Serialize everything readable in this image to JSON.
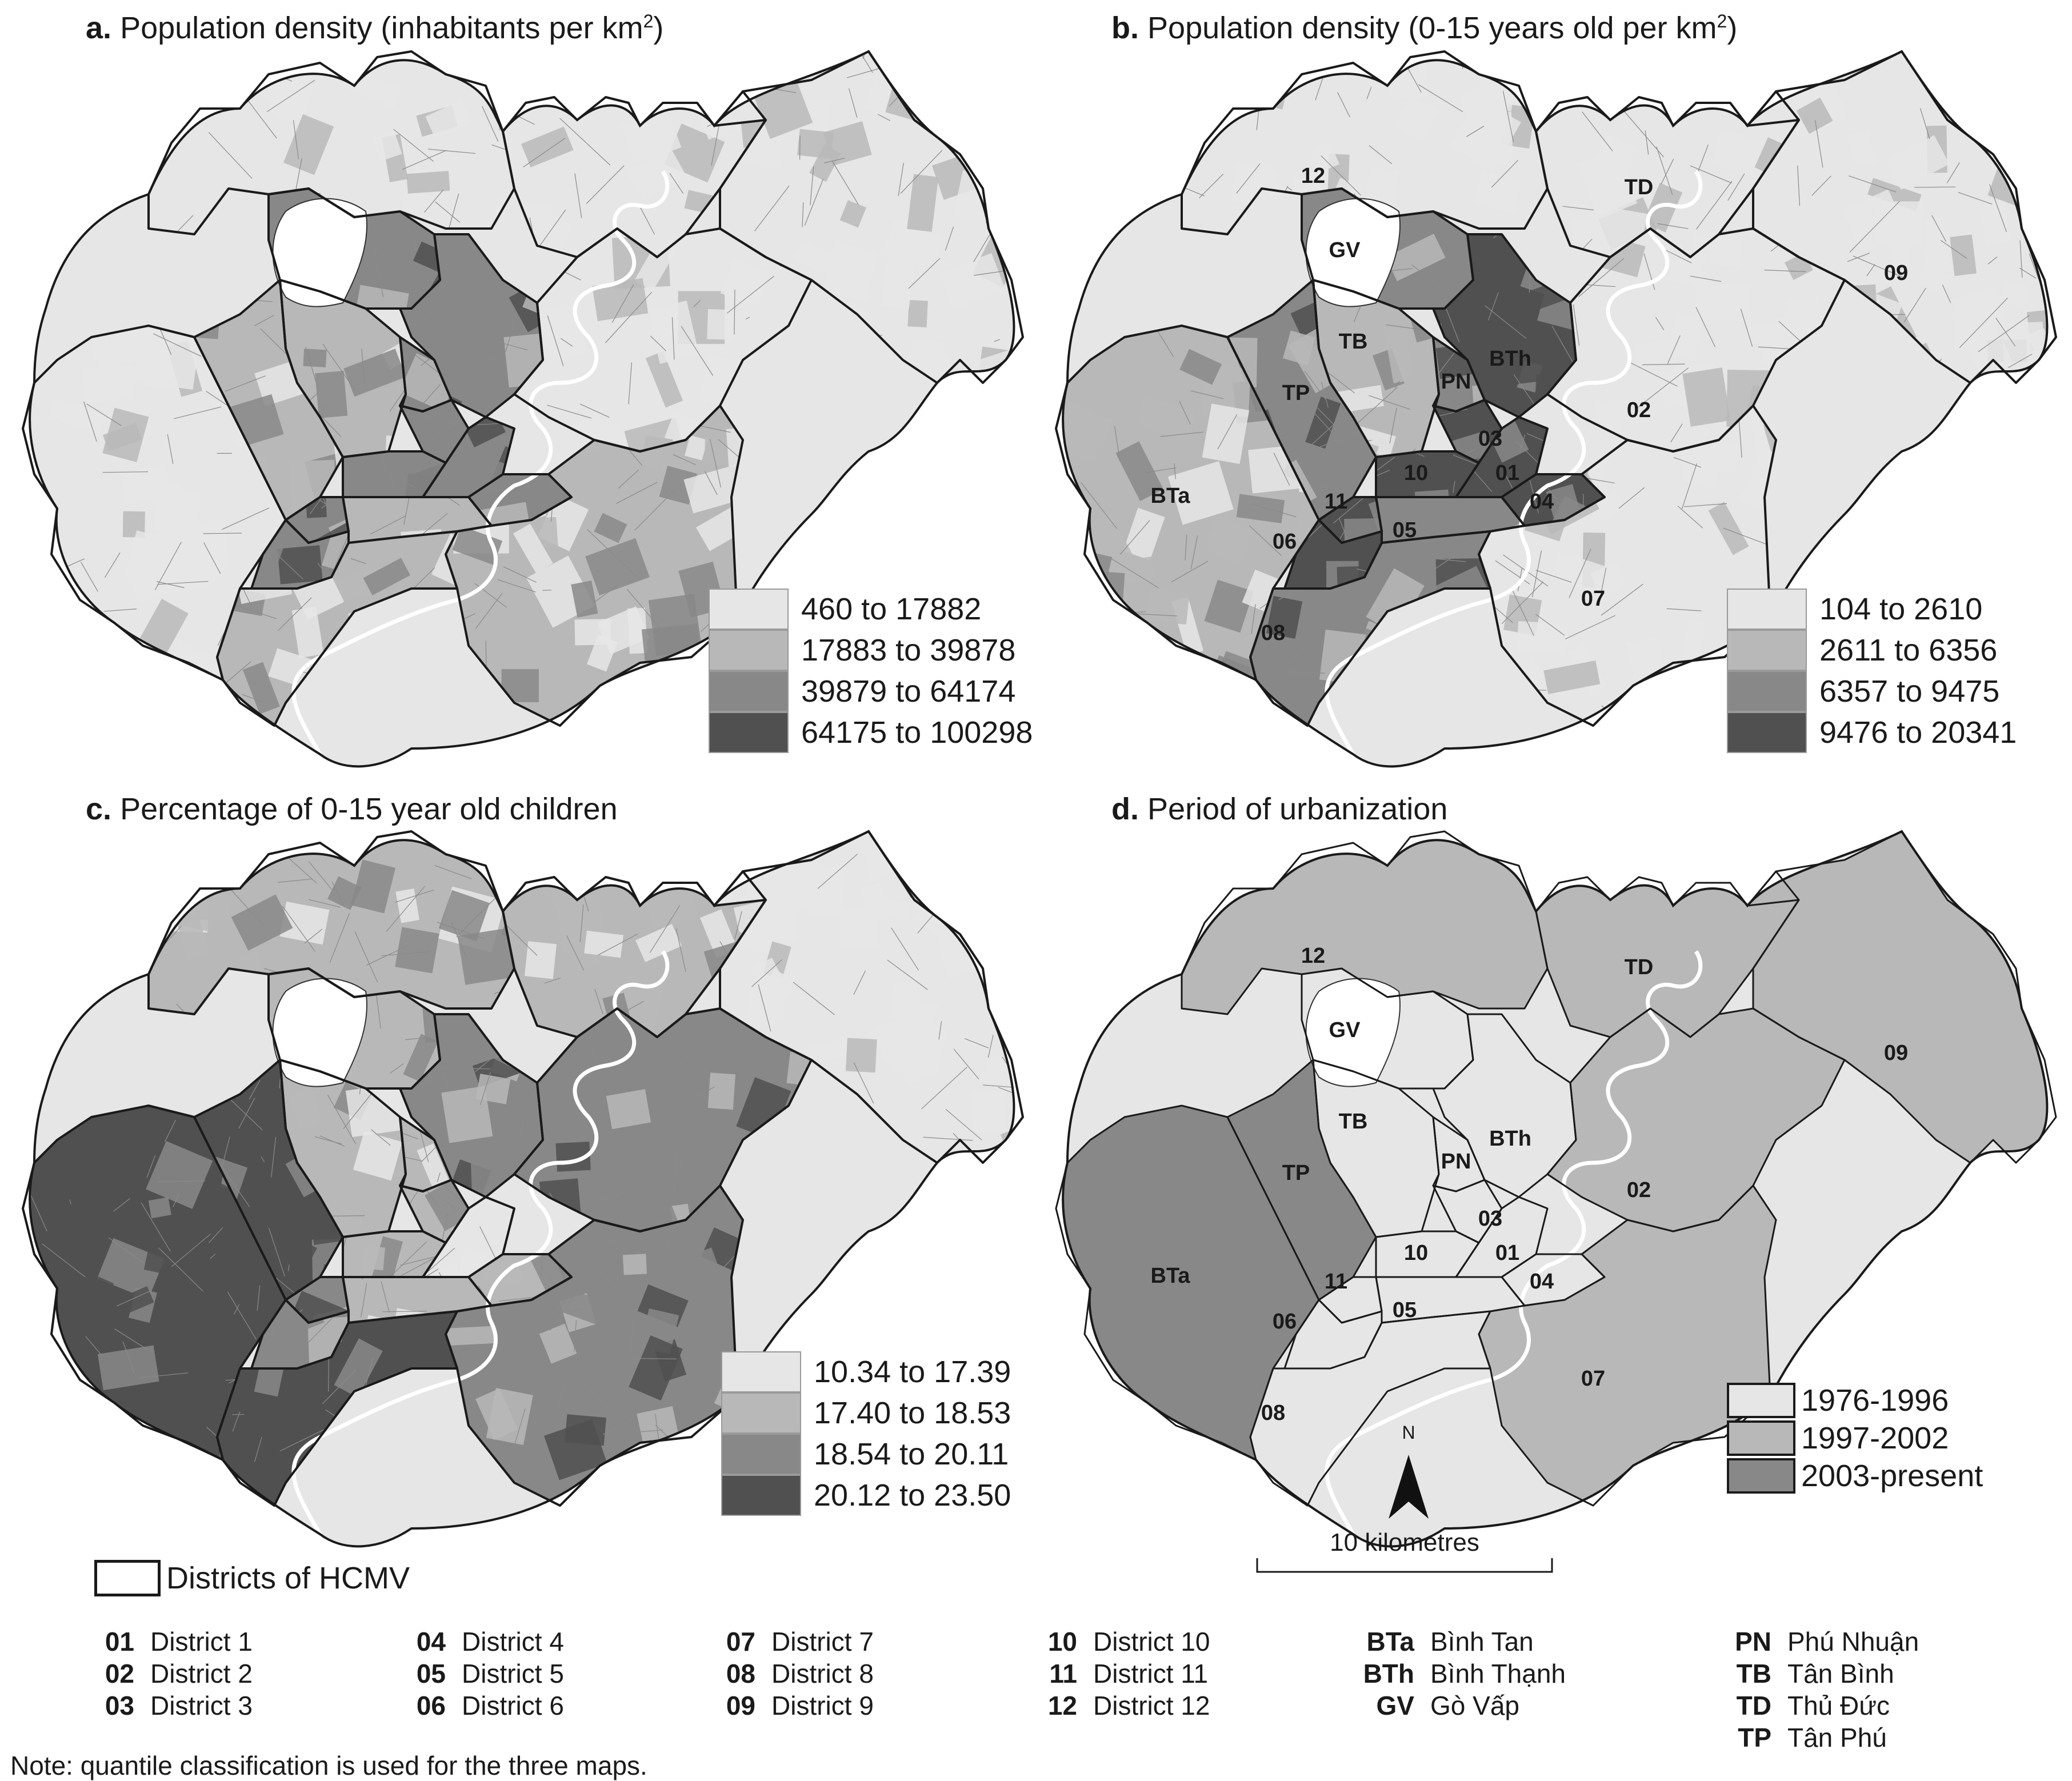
{
  "panels": {
    "a": {
      "letter": "a.",
      "title": "Population density (inhabitants per km",
      "sup": "2",
      "title_end": ")",
      "legend": [
        "460 to 17882",
        "17883 to 39878",
        "39879 to 64174",
        "64175 to 100298"
      ]
    },
    "b": {
      "letter": "b.",
      "title": "Population density (0-15 years old per km",
      "sup": "2",
      "title_end": ")",
      "legend": [
        "104 to 2610",
        "2611 to 6356",
        "6357 to 9475",
        "9476 to 20341"
      ]
    },
    "c": {
      "letter": "c.",
      "title": "Percentage of 0-15 year old children",
      "legend": [
        "10.34 to 17.39",
        "17.40 to 18.53",
        "18.54 to 20.11",
        "20.12 to 23.50"
      ]
    },
    "d": {
      "letter": "d.",
      "title": "Period of urbanization",
      "legend": [
        "1976-1996",
        "1997-2002",
        "2003-present"
      ]
    }
  },
  "classes": {
    "quantile_colors": [
      "#e6e6e6",
      "#b8b8b8",
      "#888888",
      "#505050"
    ],
    "period_colors": [
      "#e6e6e6",
      "#b8b8b8",
      "#888888"
    ]
  },
  "district_labels": {
    "b": [
      "12",
      "TD",
      "GV",
      "09",
      "TB",
      "BTh",
      "PN",
      "TP",
      "03",
      "02",
      "10",
      "01",
      "BTa",
      "11",
      "04",
      "05",
      "06",
      "07",
      "08"
    ],
    "d": [
      "12",
      "TD",
      "GV",
      "09",
      "TB",
      "BTh",
      "PN",
      "TP",
      "03",
      "02",
      "10",
      "01",
      "BTa",
      "11",
      "04",
      "05",
      "06",
      "07",
      "08"
    ]
  },
  "north_label": "N",
  "scale_label": "10 kilometres",
  "boundary_legend": "Districts of HCMV",
  "key": [
    [
      {
        "code": "01",
        "name": "District 1"
      },
      {
        "code": "02",
        "name": "District 2"
      },
      {
        "code": "03",
        "name": "District 3"
      }
    ],
    [
      {
        "code": "04",
        "name": "District 4"
      },
      {
        "code": "05",
        "name": "District 5"
      },
      {
        "code": "06",
        "name": "District 6"
      }
    ],
    [
      {
        "code": "07",
        "name": "District 7"
      },
      {
        "code": "08",
        "name": "District 8"
      },
      {
        "code": "09",
        "name": "District 9"
      }
    ],
    [
      {
        "code": "10",
        "name": "District 10"
      },
      {
        "code": "11",
        "name": "District 11"
      },
      {
        "code": "12",
        "name": "District 12"
      }
    ],
    [
      {
        "code": "BTa",
        "name": "Bình Tan"
      },
      {
        "code": "BTh",
        "name": "Bình Thạnh"
      },
      {
        "code": "GV",
        "name": "Gò Vấp"
      }
    ],
    [
      {
        "code": "PN",
        "name": "Phú Nhuận"
      },
      {
        "code": "TB",
        "name": "Tân Bình"
      },
      {
        "code": "TD",
        "name": "Thủ Đức"
      },
      {
        "code": "TP",
        "name": "Tân Phú"
      }
    ]
  ],
  "note": "Note: quantile classification is used for the three maps."
}
